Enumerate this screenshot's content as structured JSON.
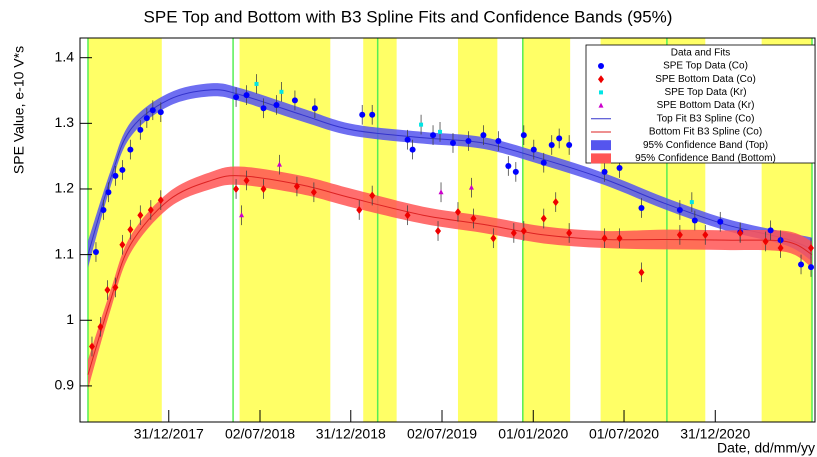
{
  "chart_data": {
    "type": "scatter",
    "title": "SPE Top and Bottom with B3 Spline Fits and Confidence Bands (95%)",
    "x_label": "Date, dd/mm/yy",
    "y_label": "SPE Value, e-10 V*s",
    "xlim": [
      "2017-07-06",
      "2021-07-19"
    ],
    "ylim": [
      0.845,
      1.43
    ],
    "xticks": [
      {
        "value": "2017-12-31",
        "label": "31/12/2017"
      },
      {
        "value": "2018-07-02",
        "label": "02/07/2018"
      },
      {
        "value": "2018-12-31",
        "label": "31/12/2018"
      },
      {
        "value": "2019-07-02",
        "label": "02/07/2019"
      },
      {
        "value": "2020-01-01",
        "label": "01/01/2020"
      },
      {
        "value": "2020-07-01",
        "label": "01/07/2020"
      },
      {
        "value": "2020-12-31",
        "label": "31/12/2020"
      }
    ],
    "yticks": [
      0.9,
      1,
      1.1,
      1.2,
      1.3,
      1.4
    ],
    "legend_title": "Data and Fits",
    "legend": "top-right",
    "shaded_color": "#ffff66",
    "shaded_periods": [
      [
        "2017-07-22",
        "2017-12-17"
      ],
      [
        "2018-05-22",
        "2018-11-20"
      ],
      [
        "2019-01-25",
        "2019-04-02"
      ],
      [
        "2019-08-03",
        "2019-10-21"
      ],
      [
        "2019-12-11",
        "2020-03-15"
      ],
      [
        "2020-05-15",
        "2020-12-11"
      ],
      [
        "2021-04-03",
        "2021-07-13"
      ]
    ],
    "marker_line_color": "#55ee55",
    "marker_lines": [
      "2017-07-22",
      "2018-05-09",
      "2019-02-23",
      "2019-12-11",
      "2020-09-25",
      "2021-07-13"
    ],
    "series": [
      {
        "name": "SPE Top Data (Co)",
        "color": "#0000ff",
        "marker": "circle",
        "error": 0.015,
        "x": [
          "2017-08-07",
          "2017-08-22",
          "2017-09-01",
          "2017-09-15",
          "2017-09-29",
          "2017-10-15",
          "2017-11-04",
          "2017-11-17",
          "2017-11-29",
          "2017-12-15",
          "2018-05-15",
          "2018-06-05",
          "2018-07-09",
          "2018-08-04",
          "2018-09-10",
          "2018-10-20",
          "2019-01-23",
          "2019-02-12",
          "2019-04-24",
          "2019-05-04",
          "2019-06-14",
          "2019-07-24",
          "2019-08-24",
          "2019-09-23",
          "2019-10-23",
          "2019-11-12",
          "2019-11-27",
          "2019-12-13",
          "2020-01-02",
          "2020-01-22",
          "2020-02-07",
          "2020-02-22",
          "2020-03-13",
          "2020-05-23",
          "2020-06-22",
          "2020-08-05",
          "2020-10-21",
          "2020-11-20",
          "2021-01-10",
          "2021-02-19",
          "2021-04-21",
          "2021-05-11",
          "2021-06-21",
          "2021-07-11"
        ],
        "values": [
          1.104,
          1.168,
          1.195,
          1.22,
          1.229,
          1.26,
          1.29,
          1.308,
          1.32,
          1.317,
          1.34,
          1.343,
          1.323,
          1.328,
          1.335,
          1.323,
          1.313,
          1.313,
          1.275,
          1.26,
          1.282,
          1.27,
          1.273,
          1.282,
          1.273,
          1.235,
          1.226,
          1.282,
          1.26,
          1.24,
          1.267,
          1.277,
          1.267,
          1.226,
          1.232,
          1.171,
          1.168,
          1.152,
          1.15,
          1.134,
          1.137,
          1.122,
          1.085,
          1.081
        ]
      },
      {
        "name": "SPE Bottom Data (Co)",
        "color": "#ee0000",
        "marker": "diamond",
        "error": 0.015,
        "x": [
          "2017-07-30",
          "2017-08-16",
          "2017-08-30",
          "2017-09-15",
          "2017-09-29",
          "2017-10-15",
          "2017-11-04",
          "2017-11-25",
          "2017-12-15",
          "2018-05-15",
          "2018-06-05",
          "2018-07-09",
          "2018-09-14",
          "2018-10-18",
          "2019-01-17",
          "2019-02-12",
          "2019-04-24",
          "2019-06-24",
          "2019-08-03",
          "2019-09-03",
          "2019-10-13",
          "2019-11-23",
          "2019-12-13",
          "2020-01-22",
          "2020-02-15",
          "2020-03-13",
          "2020-05-23",
          "2020-06-22",
          "2020-08-05",
          "2020-10-21",
          "2020-12-11",
          "2021-02-19",
          "2021-04-11",
          "2021-05-11",
          "2021-07-11"
        ],
        "values": [
          0.96,
          0.99,
          1.046,
          1.05,
          1.115,
          1.138,
          1.16,
          1.168,
          1.183,
          1.2,
          1.213,
          1.2,
          1.204,
          1.195,
          1.168,
          1.19,
          1.16,
          1.136,
          1.165,
          1.155,
          1.125,
          1.133,
          1.136,
          1.155,
          1.18,
          1.133,
          1.125,
          1.125,
          1.073,
          1.13,
          1.13,
          1.133,
          1.12,
          1.11,
          1.11
        ]
      },
      {
        "name": "SPE Top Data (Kr)",
        "color": "#00e5e5",
        "marker": "square",
        "error": 0.015,
        "x": [
          "2018-06-25",
          "2018-08-14",
          "2019-05-21",
          "2019-06-28",
          "2020-11-14"
        ],
        "values": [
          1.36,
          1.348,
          1.298,
          1.287,
          1.18
        ]
      },
      {
        "name": "SPE Bottom Data (Kr)",
        "color": "#cc00cc",
        "marker": "triangle",
        "error": 0.015,
        "x": [
          "2018-05-26",
          "2018-08-10",
          "2019-06-30",
          "2019-08-30"
        ],
        "values": [
          1.16,
          1.237,
          1.195,
          1.202
        ]
      }
    ],
    "fits": [
      {
        "name": "Top Fit B3 Spline (Co)",
        "color": "#3333cc",
        "x": [
          "2017-07-22",
          "2017-09-05",
          "2017-10-15",
          "2017-12-31",
          "2018-03-26",
          "2018-05-26",
          "2018-09-24",
          "2019-01-03",
          "2019-05-25",
          "2019-09-23",
          "2020-01-22",
          "2020-05-23",
          "2020-09-21",
          "2021-01-20",
          "2021-05-22",
          "2021-07-13"
        ],
        "values": [
          1.1,
          1.215,
          1.29,
          1.336,
          1.351,
          1.343,
          1.313,
          1.29,
          1.278,
          1.27,
          1.245,
          1.215,
          1.178,
          1.146,
          1.124,
          1.108
        ],
        "band": {
          "name": "95% Confidence Band (Top)",
          "color": "#5555ee",
          "lower": [
            1.08,
            1.203,
            1.279,
            1.326,
            1.341,
            1.333,
            1.303,
            1.281,
            1.269,
            1.261,
            1.236,
            1.206,
            1.169,
            1.137,
            1.114,
            1.09
          ],
          "upper": [
            1.12,
            1.227,
            1.301,
            1.346,
            1.361,
            1.353,
            1.323,
            1.299,
            1.287,
            1.279,
            1.254,
            1.224,
            1.187,
            1.155,
            1.134,
            1.126
          ]
        }
      },
      {
        "name": "Bottom Fit B3 Spline (Co)",
        "color": "#dd2222",
        "x": [
          "2017-07-22",
          "2017-09-05",
          "2017-10-15",
          "2017-12-31",
          "2018-03-26",
          "2018-05-26",
          "2018-09-24",
          "2019-01-03",
          "2019-05-25",
          "2019-09-23",
          "2020-01-22",
          "2020-05-23",
          "2020-09-21",
          "2021-01-20",
          "2021-05-22",
          "2021-07-13"
        ],
        "values": [
          0.917,
          1.03,
          1.115,
          1.183,
          1.213,
          1.22,
          1.206,
          1.186,
          1.16,
          1.146,
          1.13,
          1.123,
          1.123,
          1.122,
          1.12,
          1.1
        ],
        "band": {
          "name": "95% Confidence Band (Bottom)",
          "color": "#ff5555",
          "lower": [
            0.895,
            1.015,
            1.102,
            1.171,
            1.2,
            1.206,
            1.192,
            1.172,
            1.147,
            1.133,
            1.117,
            1.11,
            1.108,
            1.107,
            1.104,
            1.08
          ],
          "upper": [
            0.939,
            1.045,
            1.128,
            1.195,
            1.226,
            1.234,
            1.22,
            1.2,
            1.173,
            1.159,
            1.143,
            1.136,
            1.138,
            1.137,
            1.136,
            1.12
          ]
        }
      }
    ]
  }
}
